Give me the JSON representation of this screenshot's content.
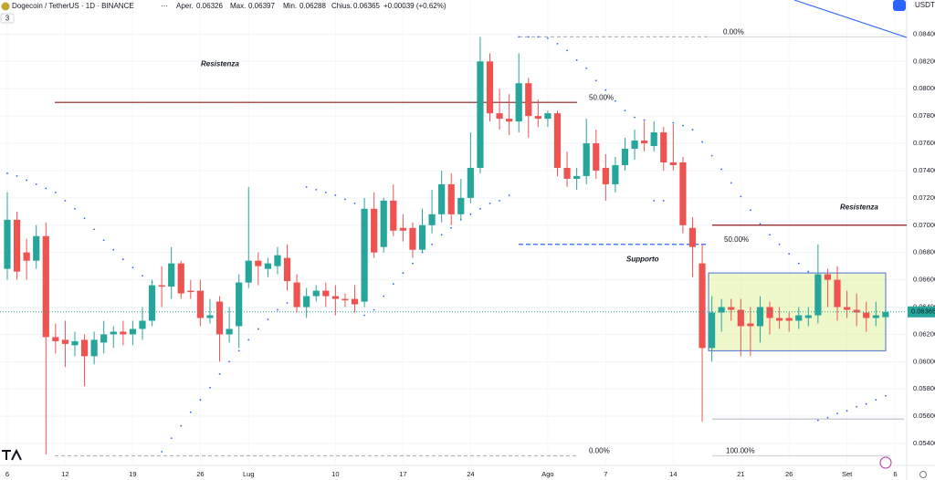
{
  "header": {
    "symbol": "Dogecoin / TetherUS · 1D · BINANCE",
    "items": [
      {
        "label": "Aper.",
        "value": 0.06326
      },
      {
        "label": "Max.",
        "value": 0.06397
      },
      {
        "label": "Min.",
        "value": 0.06288
      },
      {
        "label": "Chius.",
        "value": 0.06365
      }
    ],
    "change": "+0.00039 (+0.62%)",
    "currency": "USDT",
    "badge": "3"
  },
  "chart_data": {
    "type": "candlestick",
    "categories": [
      "6",
      null,
      null,
      null,
      null,
      null,
      "12",
      null,
      null,
      null,
      null,
      null,
      null,
      "19",
      null,
      null,
      null,
      null,
      null,
      null,
      "26",
      null,
      null,
      null,
      null,
      "Lug",
      null,
      null,
      null,
      null,
      null,
      null,
      null,
      null,
      "10",
      null,
      null,
      null,
      null,
      null,
      null,
      "17",
      null,
      null,
      null,
      null,
      null,
      null,
      "24",
      null,
      null,
      null,
      null,
      null,
      null,
      null,
      "Ago",
      null,
      null,
      null,
      null,
      null,
      "7",
      null,
      null,
      null,
      null,
      null,
      null,
      "14",
      null,
      null,
      null,
      null,
      null,
      null,
      "21",
      null,
      null,
      null,
      null,
      "26",
      null,
      null,
      null,
      null,
      null,
      "Set",
      null,
      null,
      null,
      null,
      "6"
    ],
    "open": [
      0.0668,
      0.0704,
      0.068,
      0.0674,
      0.0692,
      0.0618,
      0.0616,
      0.0612,
      0.0616,
      0.0604,
      0.0614,
      0.062,
      0.0622,
      0.062,
      0.0624,
      0.063,
      0.0656,
      0.0655,
      0.0672,
      0.0652,
      0.0652,
      0.0632,
      0.0644,
      0.062,
      0.0626,
      0.0658,
      0.0674,
      0.0668,
      0.067,
      0.0676,
      0.0658,
      0.064,
      0.0648,
      0.0652,
      0.0648,
      0.0646,
      0.0646,
      0.0644,
      0.0712,
      0.0684,
      0.0718,
      0.0698,
      0.0698,
      0.0682,
      0.07,
      0.0708,
      0.073,
      0.0708,
      0.072,
      0.0742,
      0.082,
      0.0782,
      0.0778,
      0.0776,
      0.0804,
      0.078,
      0.0778,
      0.0782,
      0.0742,
      0.0734,
      0.0736,
      0.076,
      0.0742,
      0.073,
      0.0744,
      0.0756,
      0.0762,
      0.0758,
      0.0768,
      0.0746,
      0.0746,
      0.0698,
      0.0672,
      0.061,
      0.0636,
      0.064,
      0.0638,
      0.0628,
      0.0626,
      0.064,
      0.0632,
      0.0632,
      0.063,
      0.0632,
      0.0634,
      0.0664,
      0.066,
      0.064,
      0.0638,
      0.0636,
      0.0632,
      0.06326,
      null
    ],
    "high": [
      0.0724,
      0.071,
      0.069,
      0.07,
      0.0702,
      0.0628,
      0.063,
      0.0622,
      0.062,
      0.0622,
      0.063,
      0.0626,
      0.063,
      0.063,
      0.064,
      0.066,
      0.067,
      0.0684,
      0.0674,
      0.066,
      0.066,
      0.0646,
      0.0648,
      0.064,
      0.0664,
      0.0728,
      0.068,
      0.0676,
      0.0684,
      0.0686,
      0.0664,
      0.0654,
      0.0656,
      0.0658,
      0.0656,
      0.065,
      0.0656,
      0.072,
      0.0724,
      0.072,
      0.073,
      0.0708,
      0.0702,
      0.0712,
      0.0726,
      0.074,
      0.0738,
      0.0734,
      0.0768,
      0.0838,
      0.0826,
      0.08,
      0.0796,
      0.0826,
      0.0808,
      0.0792,
      0.0784,
      0.0784,
      0.0754,
      0.0742,
      0.0778,
      0.077,
      0.0752,
      0.075,
      0.0764,
      0.077,
      0.0776,
      0.0776,
      0.0772,
      0.0774,
      0.075,
      0.0706,
      0.0686,
      0.0648,
      0.0646,
      0.0646,
      0.0646,
      0.064,
      0.0648,
      0.0644,
      0.064,
      0.0636,
      0.064,
      0.064,
      0.0686,
      0.0668,
      0.067,
      0.0652,
      0.065,
      0.0644,
      0.0644,
      0.06397,
      null
    ],
    "low": [
      0.066,
      0.066,
      0.066,
      0.0668,
      0.0532,
      0.0606,
      0.0596,
      0.0604,
      0.0582,
      0.0598,
      0.0606,
      0.061,
      0.0612,
      0.0612,
      0.0616,
      0.0626,
      0.064,
      0.0646,
      0.0646,
      0.0646,
      0.0626,
      0.0628,
      0.06,
      0.0614,
      0.061,
      0.0654,
      0.0656,
      0.0662,
      0.0664,
      0.0652,
      0.0636,
      0.0632,
      0.0644,
      0.064,
      0.0634,
      0.064,
      0.0636,
      0.064,
      0.0676,
      0.068,
      0.0692,
      0.0688,
      0.0676,
      0.068,
      0.0694,
      0.0702,
      0.07,
      0.0704,
      0.0716,
      0.0738,
      0.0776,
      0.077,
      0.0766,
      0.0768,
      0.0764,
      0.0772,
      0.0772,
      0.0736,
      0.0728,
      0.0726,
      0.073,
      0.0734,
      0.0718,
      0.0724,
      0.074,
      0.0748,
      0.0754,
      0.0754,
      0.074,
      0.074,
      0.0694,
      0.0662,
      0.0556,
      0.06,
      0.0622,
      0.063,
      0.0604,
      0.0604,
      0.0614,
      0.062,
      0.0624,
      0.0622,
      0.0624,
      0.0626,
      0.0628,
      0.064,
      0.063,
      0.0632,
      0.0626,
      0.0622,
      0.0626,
      0.06288,
      null
    ],
    "close": [
      0.0704,
      0.0666,
      0.0674,
      0.0692,
      0.0618,
      0.0615,
      0.0613,
      0.0615,
      0.0604,
      0.0616,
      0.062,
      0.0622,
      0.062,
      0.0624,
      0.063,
      0.0656,
      0.0655,
      0.0672,
      0.065,
      0.0651,
      0.0632,
      0.0634,
      0.062,
      0.0624,
      0.0658,
      0.0674,
      0.067,
      0.0672,
      0.0678,
      0.0659,
      0.064,
      0.0648,
      0.0652,
      0.0648,
      0.0646,
      0.0645,
      0.0642,
      0.0712,
      0.068,
      0.0718,
      0.0696,
      0.0696,
      0.0682,
      0.07,
      0.0708,
      0.073,
      0.0708,
      0.072,
      0.0742,
      0.082,
      0.0782,
      0.0778,
      0.0776,
      0.0804,
      0.078,
      0.0778,
      0.0782,
      0.0742,
      0.0734,
      0.0736,
      0.076,
      0.074,
      0.073,
      0.0744,
      0.0756,
      0.0762,
      0.076,
      0.0768,
      0.0746,
      0.0744,
      0.07,
      0.0684,
      0.061,
      0.0636,
      0.064,
      0.0638,
      0.0626,
      0.0626,
      0.064,
      0.0632,
      0.063,
      0.063,
      0.0634,
      0.0634,
      0.0664,
      0.066,
      0.064,
      0.0638,
      0.0636,
      0.0632,
      0.0634,
      0.06365,
      null
    ],
    "sar": [
      0.0738,
      0.0736,
      0.0733,
      0.073,
      0.0727,
      0.0724,
      0.0718,
      0.0712,
      0.0705,
      0.0697,
      0.0689,
      0.0682,
      0.0675,
      0.0669,
      0.0663,
      0.0658,
      0.0534,
      0.0544,
      0.0553,
      0.0563,
      0.0572,
      0.0581,
      0.0591,
      0.06,
      0.0608,
      0.0616,
      0.0624,
      0.0631,
      0.0638,
      0.0643,
      0.0646,
      0.0728,
      0.0726,
      0.0724,
      0.0722,
      0.0719,
      0.0716,
      0.0634,
      0.0638,
      0.0648,
      0.0657,
      0.0665,
      0.0672,
      0.068,
      0.0686,
      0.0693,
      0.0698,
      0.0704,
      0.0708,
      0.0712,
      0.0716,
      0.0718,
      0.0722,
      0.0838,
      0.0838,
      0.0838,
      0.0837,
      0.0833,
      0.0828,
      0.0821,
      0.0815,
      0.0806,
      0.0799,
      0.0791,
      0.0784,
      0.0779,
      0.0777,
      0.0718,
      0.0718,
      0.0775,
      0.0773,
      0.077,
      0.0761,
      0.0751,
      0.0741,
      0.0731,
      0.0721,
      0.0711,
      0.0701,
      0.0693,
      0.0686,
      0.0679,
      0.0672,
      0.0666,
      0.0557,
      0.0559,
      0.0562,
      0.0564,
      0.0567,
      0.0569,
      0.0572,
      0.0575,
      null
    ],
    "up_color": "#26a69a",
    "down_color": "#ef5350",
    "sar_color": "#2962ff",
    "ylim": [
      0.0524,
      0.0865
    ],
    "yticks": [
      {
        "value": 0.054,
        "label": "0.05400"
      },
      {
        "value": 0.056,
        "label": "0.05600"
      },
      {
        "value": 0.058,
        "label": "0.05800"
      },
      {
        "value": 0.06,
        "label": "0.06000"
      },
      {
        "value": 0.062,
        "label": "0.06200"
      },
      {
        "value": 0.064,
        "label": "0.06400"
      },
      {
        "value": 0.066,
        "label": "0.06600"
      },
      {
        "value": 0.068,
        "label": "0.06800"
      },
      {
        "value": 0.07,
        "label": "0.07000"
      },
      {
        "value": 0.072,
        "label": "0.07200"
      },
      {
        "value": 0.074,
        "label": "0.07400"
      },
      {
        "value": 0.076,
        "label": "0.07600"
      },
      {
        "value": 0.078,
        "label": "0.07800"
      },
      {
        "value": 0.08,
        "label": "0.08000"
      },
      {
        "value": 0.082,
        "label": "0.08200"
      },
      {
        "value": 0.084,
        "label": "0.08400"
      }
    ],
    "grid": true,
    "last_price": {
      "value": 0.06365,
      "label": "0.06365"
    },
    "levels": [
      {
        "label": "0.00%",
        "value": 0.0838
      },
      {
        "label": "50.00%",
        "value": 0.079
      },
      {
        "label": "50.00%",
        "value": 0.0686
      },
      {
        "label": "0.00%",
        "value": 0.0531
      },
      {
        "label": "100.00%",
        "value": 0.0531
      }
    ],
    "resistance_line": 0.07,
    "lower_line": 0.0558,
    "range_box": [
      0.0608,
      0.0665
    ],
    "annotations": [
      {
        "text": "Resistenza",
        "value": 0.0818
      },
      {
        "text": "Resistenza",
        "value": 0.0713
      },
      {
        "text": "Supporto",
        "value": 0.0675
      }
    ]
  }
}
